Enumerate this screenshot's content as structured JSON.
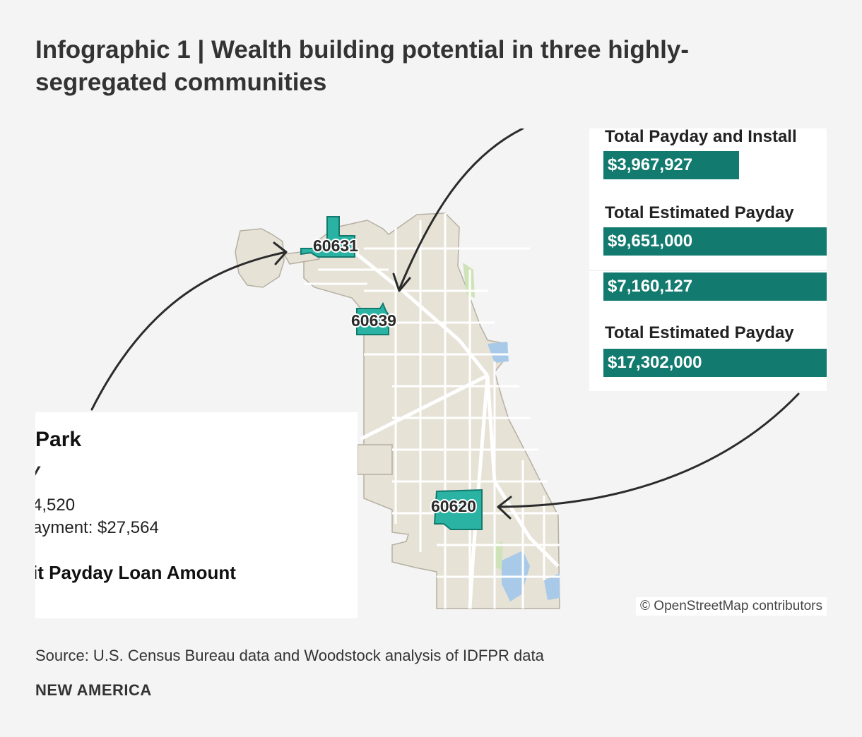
{
  "title": "Infographic 1 | Wealth building potential in three highly-segregated communities",
  "map": {
    "zip_labels": [
      "60631",
      "60639",
      "60620"
    ],
    "attribution": "© OpenStreetMap contributors",
    "colors": {
      "land": "#e6e2d6",
      "streets": "#ffffff",
      "highlight": "#2ab3a3",
      "water": "#a8c9e8",
      "park": "#cfe3b8",
      "arrow": "#2b2b2b"
    }
  },
  "right_panel": {
    "label_1": "Total Payday and Install",
    "value_1": "$3,967,927",
    "label_2": "Total Estimated Payday",
    "value_2": "$9,651,000",
    "value_3": "$7,160,127",
    "label_4": "Total Estimated Payday",
    "value_4": "$17,302,000",
    "bar_fill_fraction_1": 0.55,
    "bar_color": "#127a6e"
  },
  "left_panel": {
    "name_fragment": "Park",
    "italic_fragment": "v",
    "stat_1": "4,520",
    "stat_2": "ayment: $27,564",
    "bold_fragment": "it Payday Loan Amount"
  },
  "source": "Source: U.S. Census Bureau data and Woodstock analysis of IDFPR data",
  "brand": "NEW AMERICA"
}
